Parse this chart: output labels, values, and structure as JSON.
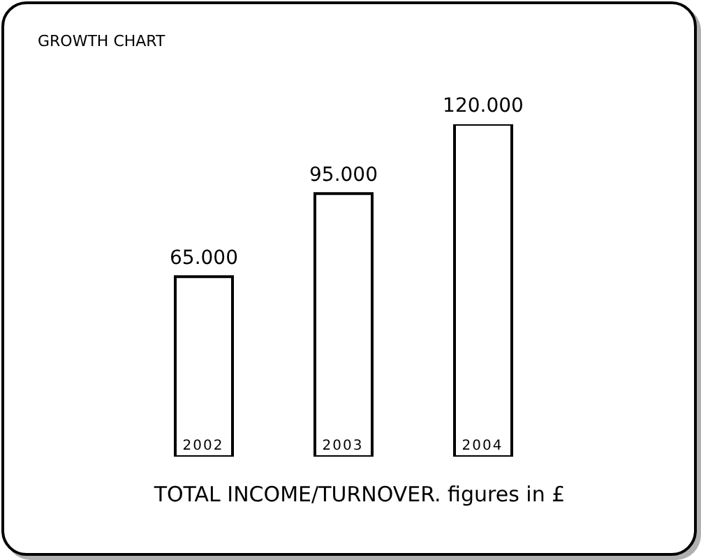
{
  "chart_data": {
    "type": "bar",
    "title": "GROWTH CHART",
    "xlabel": "TOTAL INCOME/TURNOVER. figures in £",
    "categories": [
      "2002",
      "2003",
      "2004"
    ],
    "values": [
      65000,
      95000,
      120000
    ],
    "value_labels": [
      "65.000",
      "95.000",
      "120.000"
    ],
    "color": "#ffffff"
  }
}
